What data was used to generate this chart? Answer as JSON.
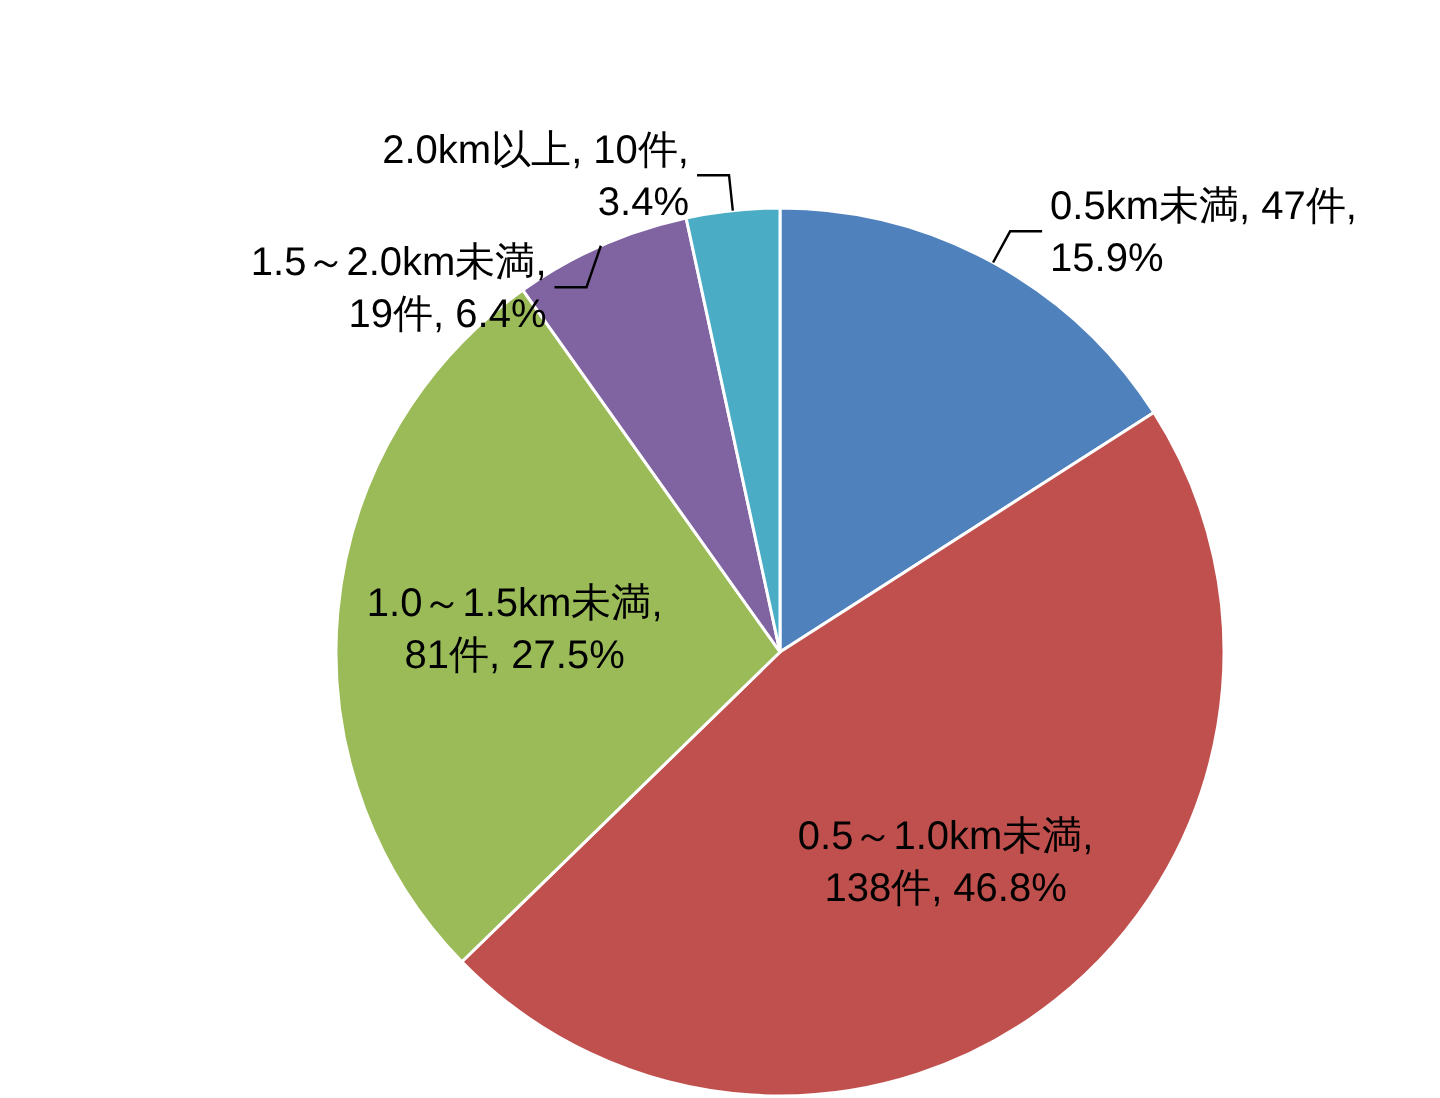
{
  "chart_data": {
    "type": "pie",
    "categories": [
      "0.5km未満",
      "0.5～1.0km未満",
      "1.0～1.5km未満",
      "1.5～2.0km未満",
      "2.0km以上"
    ],
    "values": [
      47,
      138,
      81,
      19,
      10
    ],
    "colors": [
      "#4f81bd",
      "#c0504d",
      "#9bbb59",
      "#8064a2",
      "#4bacc6"
    ],
    "value_labels": [
      ", 47件, 15.9%",
      ", 138件, 46.8%",
      ", 81件, 27.5%",
      ", 19件, 6.4%",
      ", 10件, 3.4%"
    ]
  }
}
